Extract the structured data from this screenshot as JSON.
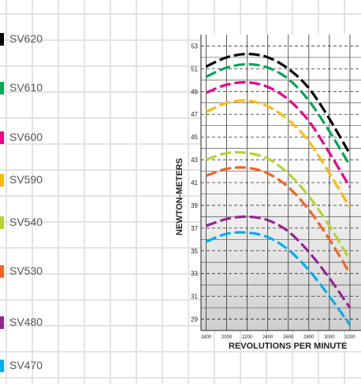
{
  "legend": [
    {
      "label": "SV620",
      "color": "#000000"
    },
    {
      "label": "SV610",
      "color": "#00a651"
    },
    {
      "label": "SV600",
      "color": "#ec008c"
    },
    {
      "label": "SV590",
      "color": "#fdb913"
    },
    {
      "label": "SV540",
      "color": "#b5d334"
    },
    {
      "label": "SV530",
      "color": "#f26522"
    },
    {
      "label": "SV480",
      "color": "#92278f"
    },
    {
      "label": "SV470",
      "color": "#00aeef"
    }
  ],
  "chart_data": {
    "type": "line",
    "title": "",
    "xlabel": "REVOLUTIONS PER MINUTE",
    "ylabel": "NEWTON-METERS",
    "xlim": [
      1750,
      3400
    ],
    "ylim": [
      28,
      54
    ],
    "x_ticks": [
      1800,
      2000,
      2200,
      2400,
      2600,
      2800,
      3000,
      3200
    ],
    "y_ticks": [
      29,
      31,
      33,
      35,
      37,
      39,
      41,
      43,
      45,
      47,
      49,
      51,
      53
    ],
    "grid": true,
    "series": [
      {
        "name": "SV620",
        "color": "#000000",
        "x": [
          1800,
          2000,
          2200,
          2400,
          2600,
          2800,
          3000,
          3200
        ],
        "y": [
          51.2,
          52.0,
          52.3,
          52.0,
          51.0,
          49.3,
          46.6,
          43.5
        ]
      },
      {
        "name": "SV610",
        "color": "#00a651",
        "x": [
          1800,
          2000,
          2200,
          2400,
          2600,
          2800,
          3000,
          3200
        ],
        "y": [
          50.3,
          51.1,
          51.4,
          51.1,
          50.1,
          48.2,
          45.5,
          42.5
        ]
      },
      {
        "name": "SV600",
        "color": "#ec008c",
        "x": [
          1800,
          2000,
          2200,
          2400,
          2600,
          2800,
          3000,
          3200
        ],
        "y": [
          48.9,
          49.6,
          49.8,
          49.4,
          48.3,
          46.4,
          43.6,
          40.6
        ]
      },
      {
        "name": "SV590",
        "color": "#fdb913",
        "x": [
          1800,
          2000,
          2200,
          2400,
          2600,
          2800,
          3000,
          3200
        ],
        "y": [
          47.2,
          48.0,
          48.2,
          47.7,
          46.5,
          44.6,
          41.8,
          38.8
        ]
      },
      {
        "name": "SV540",
        "color": "#b5d334",
        "x": [
          1800,
          2000,
          2200,
          2400,
          2600,
          2800,
          3000,
          3200
        ],
        "y": [
          43.0,
          43.6,
          43.6,
          43.1,
          41.8,
          39.8,
          37.2,
          34.2
        ]
      },
      {
        "name": "SV530",
        "color": "#f26522",
        "x": [
          1800,
          2000,
          2200,
          2400,
          2600,
          2800,
          3000,
          3200
        ],
        "y": [
          41.6,
          42.2,
          42.3,
          41.8,
          40.6,
          38.6,
          36.0,
          33.0
        ]
      },
      {
        "name": "SV480",
        "color": "#92278f",
        "x": [
          1800,
          2000,
          2200,
          2400,
          2600,
          2800,
          3000,
          3200
        ],
        "y": [
          37.2,
          37.8,
          38.0,
          37.7,
          36.7,
          34.9,
          32.6,
          30.0
        ]
      },
      {
        "name": "SV470",
        "color": "#00aeef",
        "x": [
          1800,
          2000,
          2200,
          2400,
          2600,
          2800,
          3000,
          3200
        ],
        "y": [
          35.8,
          36.5,
          36.6,
          36.2,
          35.1,
          33.3,
          31.0,
          28.5
        ]
      }
    ]
  }
}
